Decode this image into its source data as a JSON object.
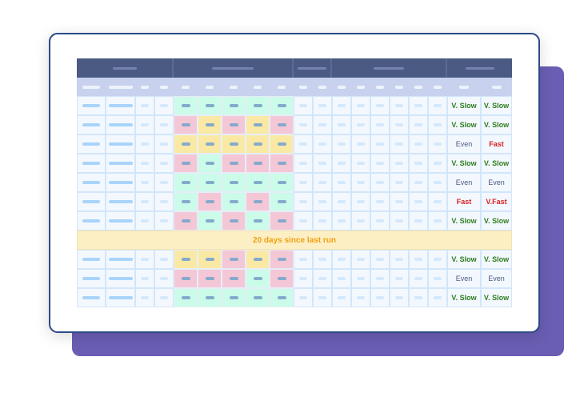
{
  "colors": {
    "mint": "#cbfbe9",
    "pink": "#f4c7d7",
    "yellow": "#fae9a5",
    "slow": "#2e7d1f",
    "even": "#4b5a82",
    "fast": "#d61f1f",
    "back_panel": "#6a5eb4",
    "card_border": "#2c4a87",
    "header": "#4b5a82"
  },
  "banner": {
    "text": "20 days since last run"
  },
  "rows": [
    {
      "cells": [
        "mint",
        "mint",
        "mint",
        "mint",
        "mint"
      ],
      "status": [
        "V. Slow",
        "V. Slow"
      ]
    },
    {
      "cells": [
        "pink",
        "yellow",
        "pink",
        "yellow",
        "pink"
      ],
      "status": [
        "V. Slow",
        "V. Slow"
      ]
    },
    {
      "cells": [
        "yellow",
        "yellow",
        "yellow",
        "yellow",
        "yellow"
      ],
      "status": [
        "Even",
        "Fast"
      ]
    },
    {
      "cells": [
        "pink",
        "mint",
        "pink",
        "pink",
        "pink"
      ],
      "status": [
        "V. Slow",
        "V. Slow"
      ]
    },
    {
      "cells": [
        "mint",
        "mint",
        "mint",
        "mint",
        "mint"
      ],
      "status": [
        "Even",
        "Even"
      ]
    },
    {
      "cells": [
        "mint",
        "pink",
        "mint",
        "pink",
        "mint"
      ],
      "status": [
        "Fast",
        "V.Fast"
      ]
    },
    {
      "cells": [
        "pink",
        "mint",
        "pink",
        "mint",
        "pink"
      ],
      "status": [
        "V. Slow",
        "V. Slow"
      ]
    },
    {
      "banner": true
    },
    {
      "cells": [
        "yellow",
        "yellow",
        "pink",
        "yellow",
        "pink"
      ],
      "status": [
        "V. Slow",
        "V. Slow"
      ]
    },
    {
      "cells": [
        "pink",
        "pink",
        "pink",
        "mint",
        "pink"
      ],
      "status": [
        "Even",
        "Even"
      ]
    },
    {
      "cells": [
        "mint",
        "mint",
        "mint",
        "mint",
        "mint"
      ],
      "status": [
        "V. Slow",
        "V. Slow"
      ]
    }
  ]
}
